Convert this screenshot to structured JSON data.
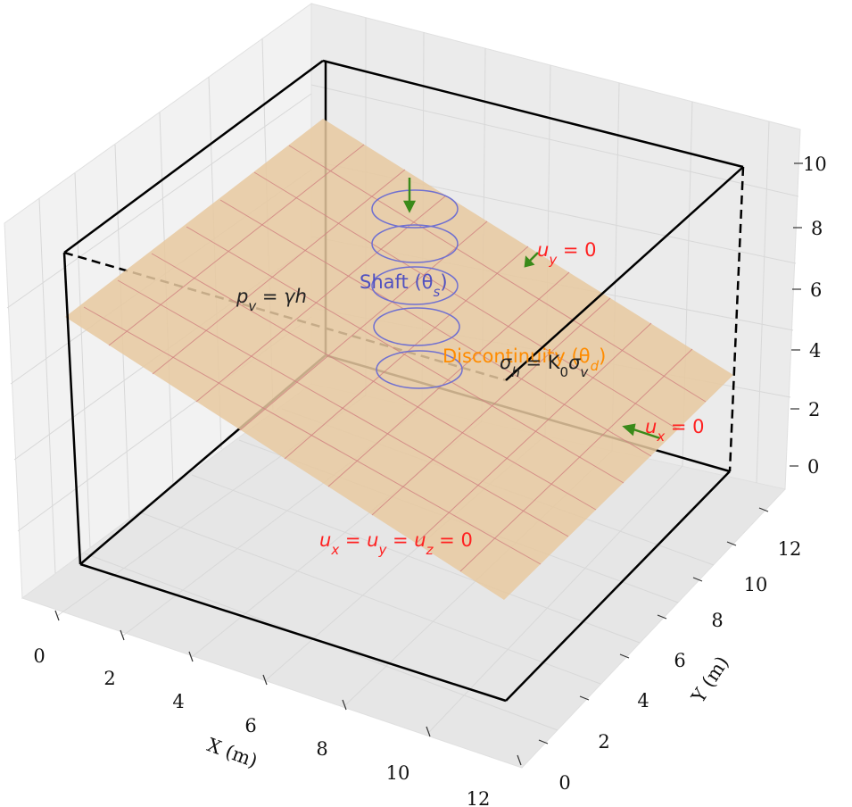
{
  "axes": {
    "x": {
      "label": "X (m)",
      "ticks": [
        "0",
        "2",
        "4",
        "6",
        "8",
        "10",
        "12"
      ]
    },
    "y": {
      "label": "Y (m)",
      "ticks": [
        "0",
        "2",
        "4",
        "6",
        "8",
        "10",
        "12"
      ]
    },
    "z": {
      "ticks": [
        "0",
        "2",
        "4",
        "6",
        "8",
        "10"
      ]
    }
  },
  "annotations": {
    "pv": {
      "main": "p",
      "sub": "v",
      "rest": " = γh"
    },
    "shaft": {
      "main": "Shaft (θ",
      "sub": "s",
      "rest": ")"
    },
    "uy": {
      "main": "u",
      "sub": "y",
      "rest": " = 0"
    },
    "discontinuity": {
      "main": "Discontinuity (θ",
      "sub": "d",
      "rest": ")"
    },
    "sigma": {
      "a": "σ",
      "a_sub": "h",
      "b": " = K",
      "b_sub": "0",
      "c": "σ",
      "c_sub": "v"
    },
    "ux": {
      "main": "u",
      "sub": "x",
      "rest": " = 0"
    },
    "fixed": {
      "a": "u",
      "a_sub": "x",
      "b": " = u",
      "b_sub": "y",
      "c": " = u",
      "c_sub": "z",
      "d": " = 0"
    }
  },
  "colors": {
    "plane_fill": "#e8c9a0",
    "plane_grid": "#d08080",
    "shaft": "#7070d0",
    "arrow": "#3a8a1a",
    "boundary_text": "#ff2020",
    "disc_text": "#ff8c00",
    "shaft_text": "#5050c0",
    "box": "#000000",
    "pane": "#f2f2f2",
    "grid": "#d8d8d8"
  }
}
